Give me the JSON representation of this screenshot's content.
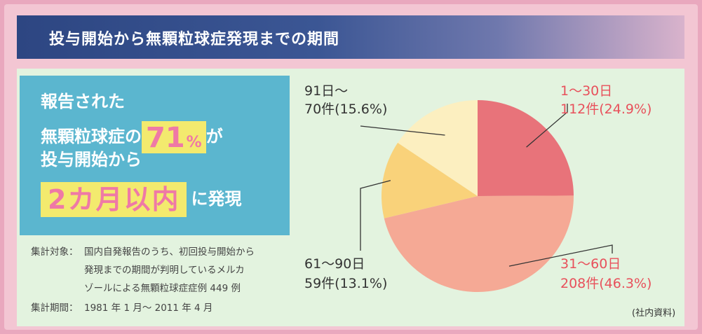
{
  "title": "投与開始から無顆粒球症発現までの期間",
  "headline": {
    "line1": "報告された",
    "line2_prefix": "無顆粒球症の",
    "percent_value": "71",
    "percent_symbol": "%",
    "line2_suffix": "が",
    "line3": "投与開始から",
    "highlight": "2カ月以内",
    "line4_suffix": "に発現"
  },
  "notes": {
    "target_label": "集計対象：",
    "target_line1": "国内自発報告のうち、初回投与開始から",
    "target_line2": "発現までの期間が判明しているメルカ",
    "target_line3": "ゾールによる無顆粒球症症例 449 例",
    "period_label": "集計期間：",
    "period_value": "1981 年 1 月～ 2011 年 4 月"
  },
  "source": "(社内資料)",
  "colors": {
    "slice_1_30": "#e8737a",
    "slice_31_60": "#f5a995",
    "slice_61_90": "#f9d27a",
    "slice_91": "#fcefc0",
    "label_red": "#e8505b",
    "label_dark": "#333333"
  },
  "chart_data": {
    "type": "pie",
    "title": "",
    "start_angle_deg": 0,
    "direction": "clockwise",
    "slices": [
      {
        "range": "1～30日",
        "count_text": "112件",
        "percent_text": "(24.9%)",
        "count": 112,
        "percent": 24.9,
        "label_color": "red"
      },
      {
        "range": "31～60日",
        "count_text": "208件",
        "percent_text": "(46.3%)",
        "count": 208,
        "percent": 46.3,
        "label_color": "red"
      },
      {
        "range": "61～90日",
        "count_text": "59件",
        "percent_text": "(13.1%)",
        "count": 59,
        "percent": 13.1,
        "label_color": "dark"
      },
      {
        "range": "91日～",
        "count_text": "70件",
        "percent_text": "(15.6%)",
        "count": 70,
        "percent": 15.6,
        "label_color": "dark"
      }
    ]
  }
}
